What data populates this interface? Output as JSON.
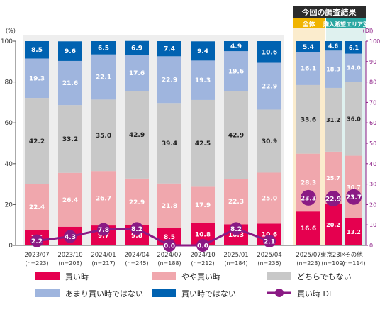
{
  "chart_data": {
    "type": "bar",
    "stacked": true,
    "left_axis_unit": "(%)",
    "right_axis_unit": "(DI)",
    "ylim": [
      0,
      100
    ],
    "y2lim": [
      0,
      100
    ],
    "left_ticks": [
      "0",
      "20",
      "40",
      "60",
      "80",
      "100"
    ],
    "right_ticks": [
      "0",
      "10",
      "20",
      "30",
      "40",
      "50",
      "60",
      "70",
      "80",
      "90",
      "100"
    ],
    "survey_header": "今回の調査結果",
    "group_overall": "全体",
    "group_area": "購入希望エリア別",
    "categories": [
      {
        "label": "2023/07",
        "n": "(n=223)"
      },
      {
        "label": "2023/10",
        "n": "(n=208)"
      },
      {
        "label": "2024/01",
        "n": "(n=217)"
      },
      {
        "label": "2024/04",
        "n": "(n=245)"
      },
      {
        "label": "2024/07",
        "n": "(n=188)"
      },
      {
        "label": "2024/10",
        "n": "(n=212)"
      },
      {
        "label": "2025/01",
        "n": "(n=184)"
      },
      {
        "label": "2025/04",
        "n": "(n=236)"
      },
      {
        "label": "2025/07",
        "n": "(n=223)"
      },
      {
        "label": "東京23区",
        "n": "(n=109)"
      },
      {
        "label": "その他",
        "n": "(n=114)"
      }
    ],
    "series": [
      {
        "name": "買い時",
        "color": "#e5004f",
        "values": [
          7.6,
          9.1,
          9.7,
          9.8,
          8.5,
          10.8,
          10.3,
          10.6,
          16.6,
          20.2,
          13.2
        ]
      },
      {
        "name": "やや買い時",
        "color": "#f0a7ad",
        "values": [
          22.4,
          26.4,
          26.7,
          22.9,
          21.8,
          17.9,
          22.3,
          25.0,
          28.3,
          25.7,
          30.7
        ]
      },
      {
        "name": "どちらでもない",
        "color": "#c8c8c8",
        "values": [
          42.2,
          33.2,
          35.0,
          42.9,
          39.4,
          42.5,
          42.9,
          30.9,
          33.6,
          31.2,
          36.0
        ]
      },
      {
        "name": "あまり買い時ではない",
        "color": "#9fb5de",
        "values": [
          19.3,
          21.6,
          22.1,
          17.6,
          22.9,
          19.3,
          19.6,
          22.9,
          16.1,
          18.3,
          14.0
        ]
      },
      {
        "name": "買い時ではない",
        "color": "#0062b1",
        "values": [
          8.5,
          9.6,
          6.5,
          6.9,
          7.4,
          9.4,
          4.9,
          10.6,
          5.4,
          4.6,
          6.1
        ]
      }
    ],
    "di_series": {
      "name": "買い時 DI",
      "color": "#8a1a84",
      "values": [
        2.2,
        4.3,
        7.8,
        8.2,
        0.0,
        0.0,
        8.2,
        2.1,
        23.3,
        22.9,
        23.7
      ]
    },
    "colors": {
      "overall_band": "#fbeccd",
      "area_band": "#dff1ef",
      "overall_tag": "#f0b400",
      "area_tag": "#2aa7a1",
      "header_bg": "#2b2b2b",
      "history_band": "#eeeeee"
    }
  }
}
